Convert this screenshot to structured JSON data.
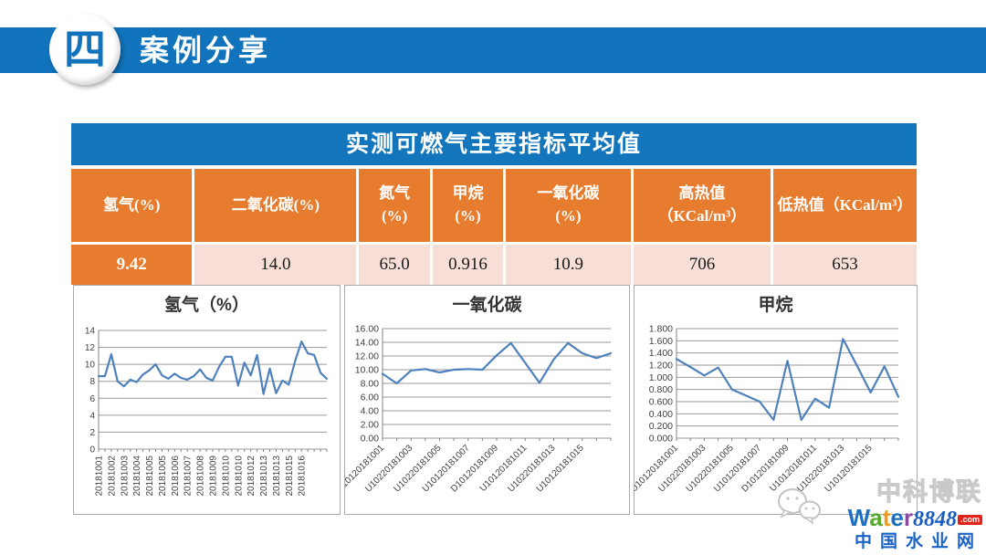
{
  "header": {
    "badge": "四",
    "title": "案例分享"
  },
  "table": {
    "title": "实测可燃气主要指标平均值",
    "columns": [
      {
        "top": "氢气(%)",
        "bottom": ""
      },
      {
        "top": "二氧化碳(%)",
        "bottom": ""
      },
      {
        "top": "氮气",
        "bottom": "(%)"
      },
      {
        "top": "甲烷",
        "bottom": "(%)"
      },
      {
        "top": "一氧化碳",
        "bottom": "(%)"
      },
      {
        "top": "高热值",
        "bottom": "（KCal/m³）"
      },
      {
        "top": "低热值（KCal/m³）",
        "bottom": ""
      }
    ],
    "values": [
      "9.42",
      "14.0",
      "65.0",
      "0.916",
      "10.9",
      "706",
      "653"
    ]
  },
  "chart_data": [
    {
      "type": "line",
      "title": "氢气（%）",
      "categories": [
        "20181001",
        "20181002",
        "20181003",
        "20181004",
        "20181005",
        "20181005",
        "20181006",
        "20181007",
        "20181008",
        "20181009",
        "20181010",
        "20181010",
        "20181012",
        "20181013",
        "20181013",
        "20181015",
        "20181016"
      ],
      "values": [
        8.6,
        8.6,
        11.2,
        8.0,
        7.4,
        8.2,
        7.9,
        8.8,
        9.3,
        10.0,
        8.7,
        8.3,
        8.9,
        8.4,
        8.2,
        8.6,
        9.4,
        8.4,
        8.1,
        9.7,
        10.9,
        10.9,
        7.5,
        10.2,
        8.7,
        11.1,
        6.5,
        9.5,
        6.6,
        8.1,
        7.6,
        10.4,
        12.7,
        11.3,
        11.1,
        9.0,
        8.3
      ],
      "ylim": [
        0,
        14
      ],
      "ytick_labels": [
        "14",
        "12",
        "10",
        "8",
        "6",
        "4",
        "2",
        "0"
      ],
      "xlabel_rotation": -90,
      "points_per_label": 2,
      "line_color": "#4F81BD",
      "grid": true,
      "legend": "none"
    },
    {
      "type": "line",
      "title": "一氧化碳",
      "categories": [
        "U10120181001",
        "U10220181003",
        "U10220181005",
        "U10120181007",
        "D10120181009",
        "U10120181011",
        "U10220181013",
        "U10120181015"
      ],
      "values": [
        9.4,
        8.0,
        9.9,
        10.1,
        9.6,
        10.0,
        10.1,
        10.0,
        12.1,
        13.9,
        11.0,
        8.1,
        11.5,
        13.9,
        12.4,
        11.7,
        12.4
      ],
      "ylim": [
        0,
        16
      ],
      "ytick_labels": [
        "16.00",
        "14.00",
        "12.00",
        "10.00",
        "8.00",
        "6.00",
        "4.00",
        "2.00",
        "0.00"
      ],
      "xlabel_rotation": -45,
      "points_per_label": 2,
      "line_color": "#4F81BD",
      "grid": true,
      "legend": "none"
    },
    {
      "type": "line",
      "title": "甲烷",
      "categories": [
        "U10120181001",
        "U10220181003",
        "U10220181005",
        "U10120181007",
        "D10120181009",
        "U10120181011",
        "U10220181013",
        "U10120181015"
      ],
      "values": [
        1.3,
        1.17,
        1.03,
        1.16,
        0.8,
        0.7,
        0.6,
        0.3,
        1.27,
        0.3,
        0.65,
        0.5,
        1.63,
        1.2,
        0.75,
        1.18,
        0.68
      ],
      "ylim": [
        0,
        1.8
      ],
      "ytick_labels": [
        "1.800",
        "1.600",
        "1.400",
        "1.200",
        "1.000",
        "0.800",
        "0.600",
        "0.400",
        "0.200",
        "0.000"
      ],
      "xlabel_rotation": -45,
      "points_per_label": 2,
      "line_color": "#4F81BD",
      "grid": true,
      "legend": "none"
    }
  ],
  "watermark": {
    "brand": "中科博联",
    "site_letters": [
      {
        "ch": "W",
        "color": "#1e6fbe"
      },
      {
        "ch": "a",
        "color": "#55ab2e"
      },
      {
        "ch": "t",
        "color": "#f09c1a"
      },
      {
        "ch": "e",
        "color": "#1e6fbe"
      },
      {
        "ch": "r",
        "color": "#8c4a9e"
      }
    ],
    "site_number": "8848",
    "site_suffix": ".com",
    "site_cn": "中国水业网",
    "icon": "wechat-bubbles-icon"
  }
}
